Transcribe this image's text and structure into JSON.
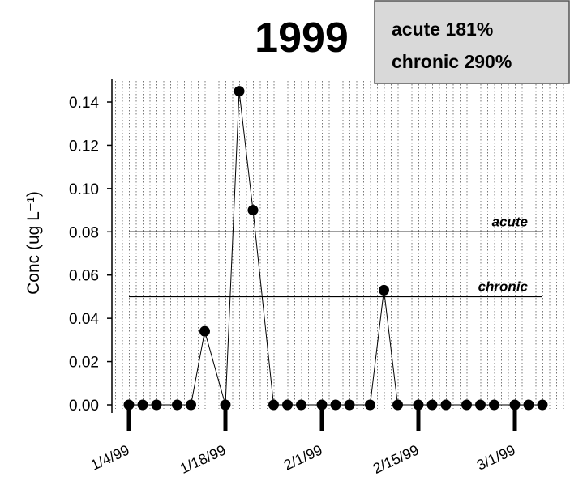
{
  "chart_data": {
    "type": "line",
    "title": "1999",
    "annotations": [
      "acute 181%",
      "chronic 290%"
    ],
    "ylabel": "Conc (ug L⁻¹)",
    "x": [
      "1/4/99",
      "1/6/99",
      "1/8/99",
      "1/11/99",
      "1/13/99",
      "1/15/99",
      "1/18/99",
      "1/20/99",
      "1/22/99",
      "1/25/99",
      "1/27/99",
      "1/29/99",
      "2/1/99",
      "2/3/99",
      "2/5/99",
      "2/8/99",
      "2/10/99",
      "2/12/99",
      "2/15/99",
      "2/17/99",
      "2/19/99",
      "2/22/99",
      "2/24/99",
      "2/26/99",
      "3/1/99",
      "3/3/99",
      "3/5/99"
    ],
    "values": [
      0,
      0,
      0,
      0,
      0,
      0.034,
      0,
      0.145,
      0.09,
      0,
      0,
      0,
      0,
      0,
      0,
      0,
      0.053,
      0,
      0,
      0,
      0,
      0,
      0,
      0,
      0,
      0,
      0
    ],
    "color": "#000000",
    "xlim": [
      "1/1/99",
      "3/8/99"
    ],
    "xticks": [
      "1/4/99",
      "1/18/99",
      "2/1/99",
      "2/15/99",
      "3/1/99"
    ],
    "ylim": [
      0,
      0.15
    ],
    "yticks": [
      {
        "value": 0,
        "label": "0.00"
      },
      {
        "value": 0.02,
        "label": "0.02"
      },
      {
        "value": 0.04,
        "label": "0.04"
      },
      {
        "value": 0.06,
        "label": "0.06"
      },
      {
        "value": 0.08,
        "label": "0.08"
      },
      {
        "value": 0.1,
        "label": "0.10"
      },
      {
        "value": 0.12,
        "label": "0.12"
      },
      {
        "value": 0.14,
        "label": "0.14"
      }
    ],
    "reference_lines": [
      {
        "label": "acute",
        "value": 0.08
      },
      {
        "label": "chronic",
        "value": 0.05
      }
    ],
    "grid": true
  }
}
